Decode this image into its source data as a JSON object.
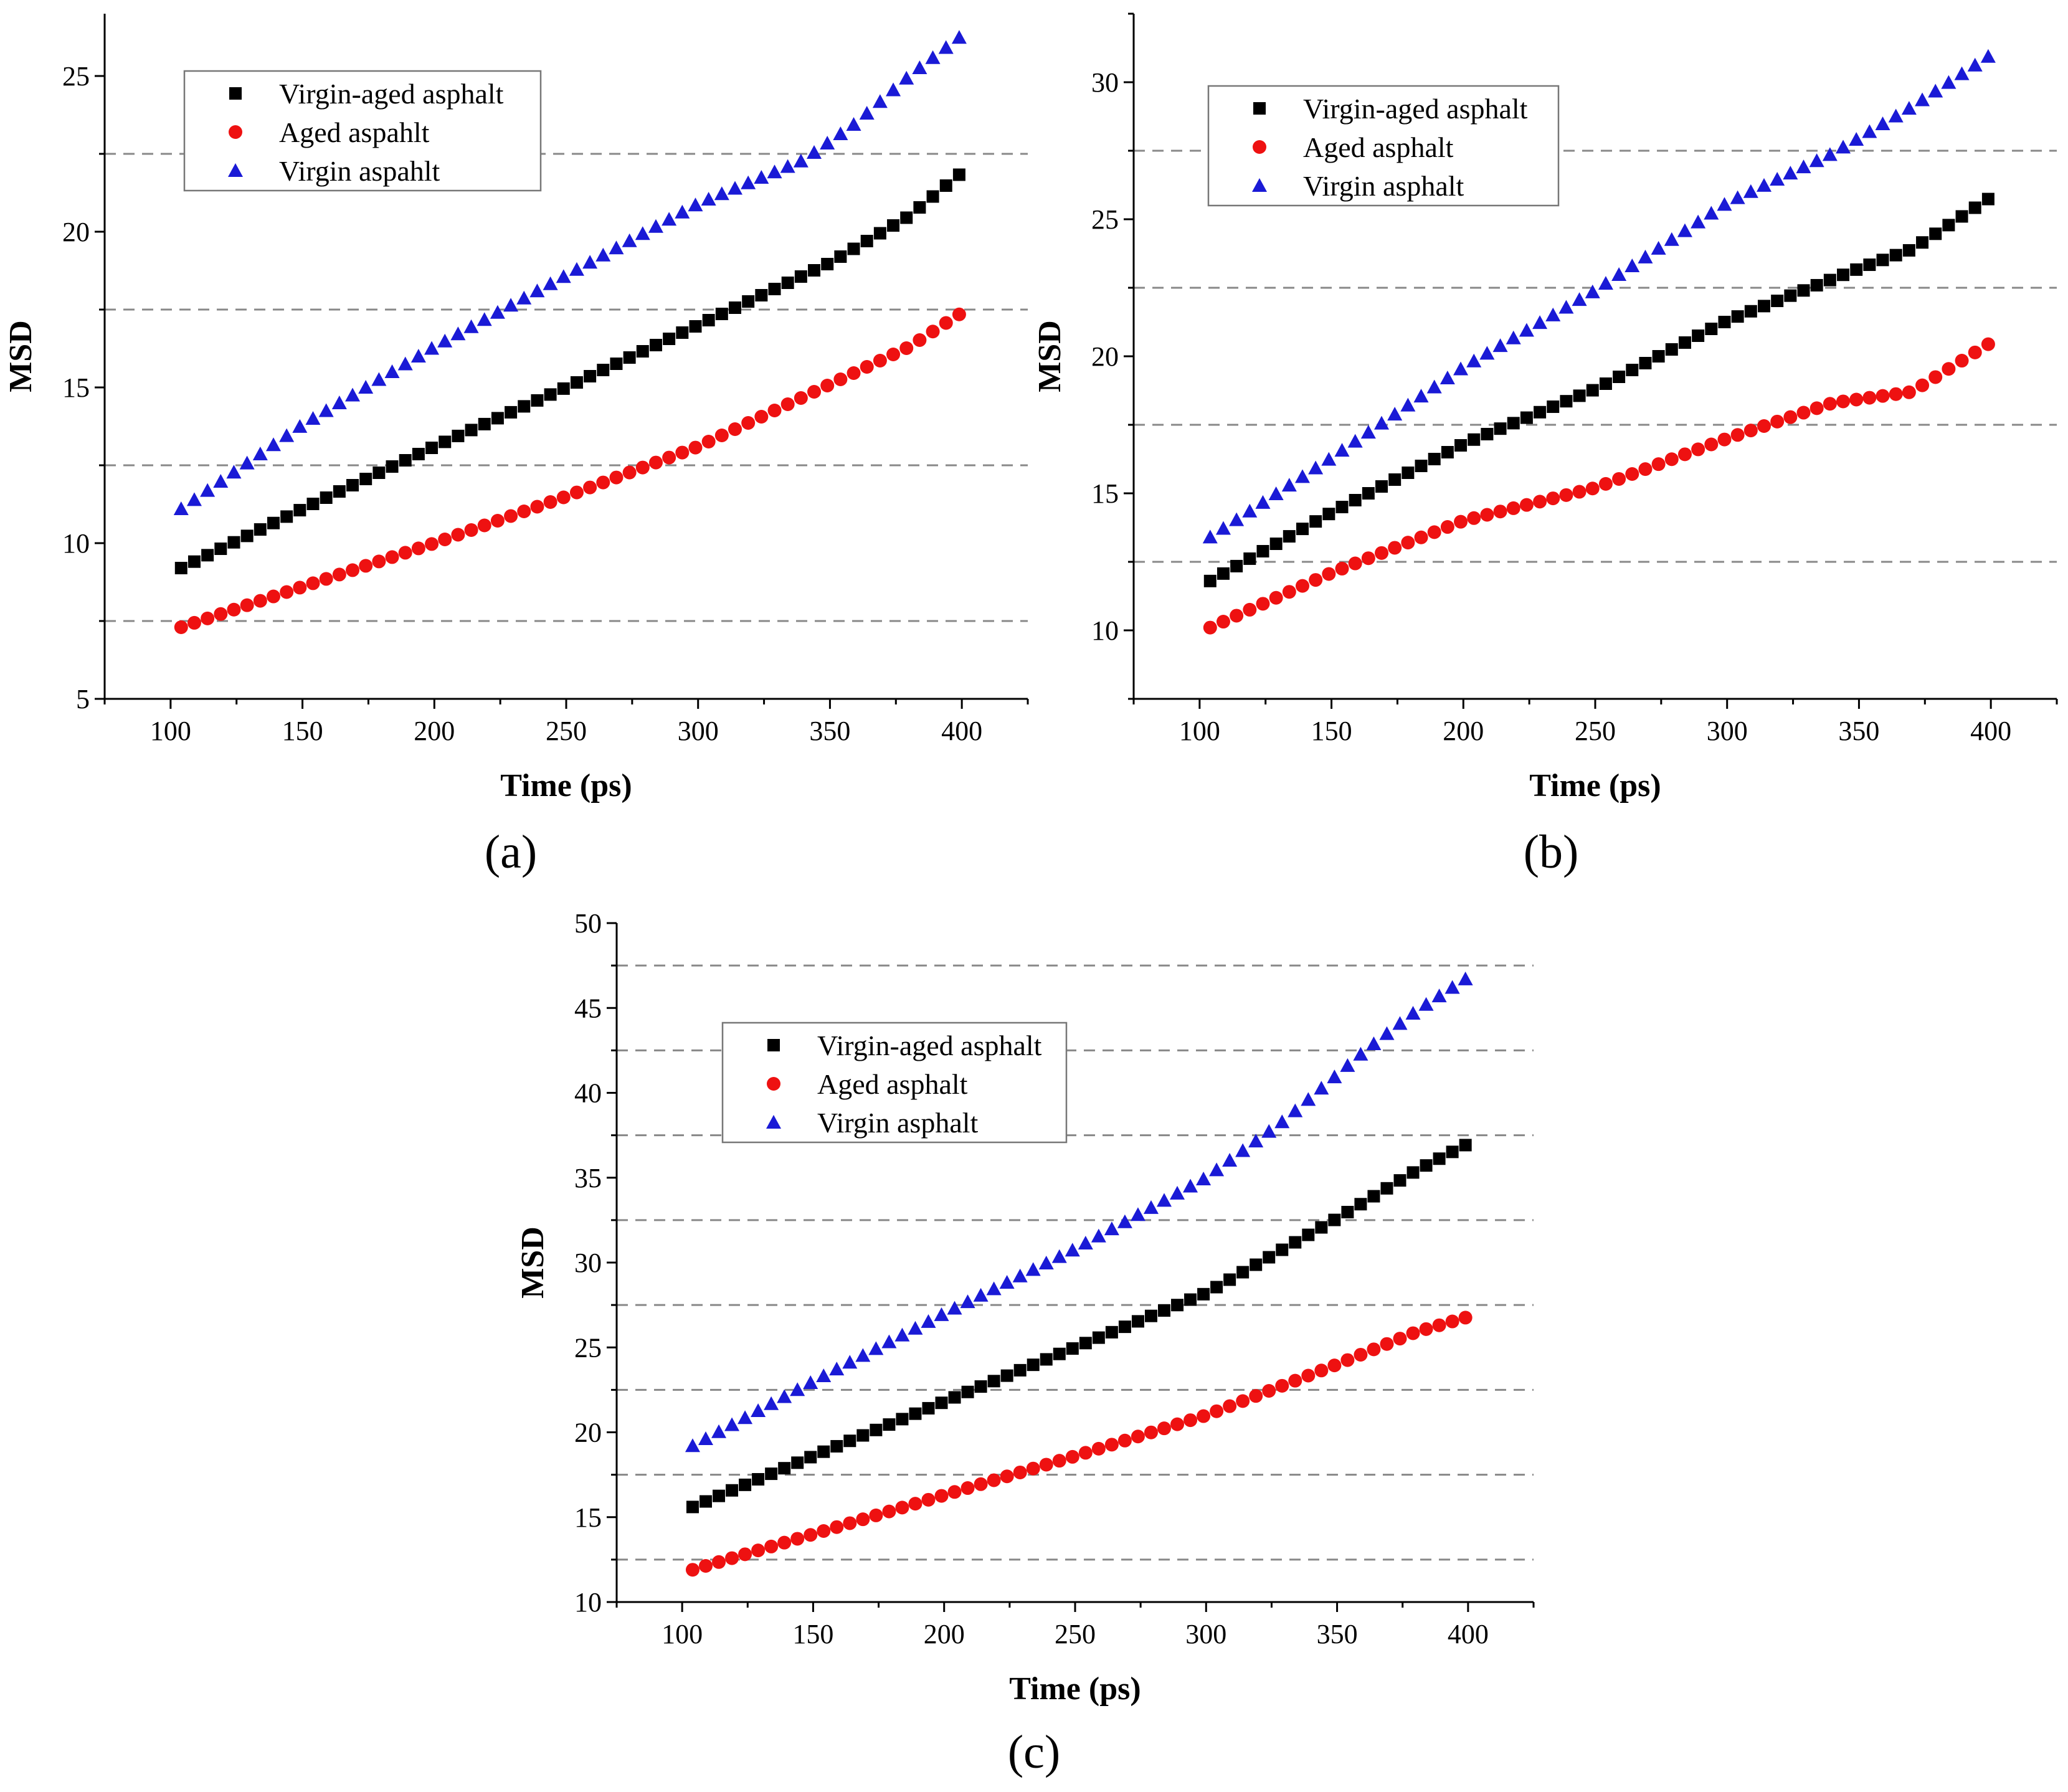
{
  "figure": {
    "panels": [
      "(a)",
      "(b)",
      "(c)"
    ]
  },
  "colors": {
    "virgin_aged": "#000000",
    "aged": "#ee1111",
    "virgin": "#1a1ad6",
    "grid": "#888888"
  },
  "chart_data": [
    {
      "id": "a",
      "type": "scatter",
      "panel_label": "(a)",
      "xlabel": "Time (ps)",
      "ylabel": "MSD",
      "xlim": [
        75,
        425
      ],
      "ylim": [
        5,
        27
      ],
      "xticks": [
        100,
        150,
        200,
        250,
        300,
        350,
        400
      ],
      "yticks": [
        5,
        10,
        15,
        20,
        25
      ],
      "grid_y": [
        7.5,
        12.5,
        17.5,
        22.5
      ],
      "legend": [
        "Virgin-aged asphalt",
        "Aged aspahlt",
        "Virgin aspahlt"
      ],
      "x": {
        "start": 104,
        "end": 400,
        "step": 5
      },
      "series": [
        {
          "name": "Virgin-aged asphalt",
          "marker": "square",
          "points": [
            [
              104,
              9.2
            ],
            [
              150,
              11.1
            ],
            [
              200,
              13.1
            ],
            [
              250,
              15.0
            ],
            [
              300,
              17.0
            ],
            [
              350,
              19.0
            ],
            [
              380,
              20.5
            ],
            [
              400,
              21.9
            ]
          ]
        },
        {
          "name": "Aged aspahlt",
          "marker": "circle",
          "points": [
            [
              104,
              7.3
            ],
            [
              150,
              8.6
            ],
            [
              200,
              10.0
            ],
            [
              250,
              11.5
            ],
            [
              300,
              13.1
            ],
            [
              350,
              15.1
            ],
            [
              380,
              16.3
            ],
            [
              400,
              17.4
            ]
          ]
        },
        {
          "name": "Virgin aspahlt",
          "marker": "triangle",
          "points": [
            [
              104,
              11.1
            ],
            [
              150,
              13.8
            ],
            [
              200,
              16.3
            ],
            [
              250,
              18.6
            ],
            [
              300,
              20.9
            ],
            [
              340,
              22.3
            ],
            [
              360,
              23.5
            ],
            [
              380,
              25.0
            ],
            [
              400,
              26.3
            ]
          ]
        }
      ]
    },
    {
      "id": "b",
      "type": "scatter",
      "panel_label": "(b)",
      "xlabel": "Time (ps)",
      "ylabel": "MSD",
      "xlim": [
        75,
        425
      ],
      "ylim": [
        7.5,
        32.5
      ],
      "xticks": [
        100,
        150,
        200,
        250,
        300,
        350,
        400
      ],
      "yticks": [
        10,
        15,
        20,
        25,
        30
      ],
      "grid_y": [
        12.5,
        17.5,
        22.5,
        27.5
      ],
      "legend": [
        "Virgin-aged asphalt",
        "Aged asphalt",
        "Virgin asphalt"
      ],
      "x": {
        "start": 104,
        "end": 400,
        "step": 5
      },
      "series": [
        {
          "name": "Virgin-aged asphalt",
          "marker": "square",
          "points": [
            [
              104,
              11.8
            ],
            [
              150,
              14.3
            ],
            [
              200,
              16.8
            ],
            [
              250,
              18.8
            ],
            [
              300,
              21.3
            ],
            [
              350,
              23.2
            ],
            [
              370,
              23.9
            ],
            [
              400,
              25.8
            ]
          ]
        },
        {
          "name": "Aged asphalt",
          "marker": "circle",
          "points": [
            [
              104,
              10.1
            ],
            [
              150,
              12.1
            ],
            [
              200,
              14.0
            ],
            [
              250,
              15.2
            ],
            [
              300,
              17.0
            ],
            [
              340,
              18.3
            ],
            [
              370,
              18.7
            ],
            [
              400,
              20.5
            ]
          ]
        },
        {
          "name": "Virgin asphalt",
          "marker": "triangle",
          "points": [
            [
              104,
              13.4
            ],
            [
              150,
              16.3
            ],
            [
              200,
              19.6
            ],
            [
              250,
              22.4
            ],
            [
              300,
              25.6
            ],
            [
              340,
              27.4
            ],
            [
              370,
              29.1
            ],
            [
              400,
              31.0
            ]
          ]
        }
      ]
    },
    {
      "id": "c",
      "type": "scatter",
      "panel_label": "(c)",
      "xlabel": "Time (ps)",
      "ylabel": "MSD",
      "xlim": [
        75,
        425
      ],
      "ylim": [
        10,
        50
      ],
      "xticks": [
        100,
        150,
        200,
        250,
        300,
        350,
        400
      ],
      "yticks": [
        10,
        15,
        20,
        25,
        30,
        35,
        40,
        45,
        50
      ],
      "grid_y": [
        12.5,
        17.5,
        22.5,
        27.5,
        32.5,
        37.5,
        42.5,
        47.5
      ],
      "legend": [
        "Virgin-aged asphalt",
        "Aged asphalt",
        "Virgin asphalt"
      ],
      "x": {
        "start": 104,
        "end": 400,
        "step": 5
      },
      "series": [
        {
          "name": "Virgin-aged asphalt",
          "marker": "square",
          "points": [
            [
              104,
              15.6
            ],
            [
              150,
              18.6
            ],
            [
              200,
              21.8
            ],
            [
              250,
              25.0
            ],
            [
              300,
              28.2
            ],
            [
              350,
              32.6
            ],
            [
              380,
              35.4
            ],
            [
              400,
              37.0
            ]
          ]
        },
        {
          "name": "Aged asphalt",
          "marker": "circle",
          "points": [
            [
              104,
              11.9
            ],
            [
              150,
              14.0
            ],
            [
              200,
              16.3
            ],
            [
              250,
              18.6
            ],
            [
              300,
              21.0
            ],
            [
              350,
              24.0
            ],
            [
              380,
              25.9
            ],
            [
              400,
              26.8
            ]
          ]
        },
        {
          "name": "Virgin asphalt",
          "marker": "triangle",
          "points": [
            [
              104,
              19.2
            ],
            [
              150,
              23.0
            ],
            [
              200,
              27.0
            ],
            [
              250,
              30.8
            ],
            [
              300,
              35.0
            ],
            [
              330,
              38.4
            ],
            [
              360,
              42.4
            ],
            [
              380,
              44.8
            ],
            [
              400,
              46.8
            ]
          ]
        }
      ]
    }
  ]
}
